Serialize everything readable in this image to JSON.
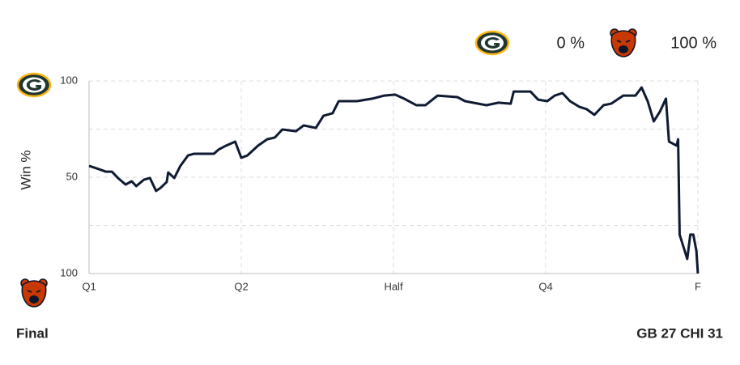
{
  "chart_data": {
    "type": "line",
    "header": {
      "home_pct": "0 %",
      "away_pct": "100 %"
    },
    "ylabel": "Win %",
    "xlim": [
      0,
      4
    ],
    "xticks": [
      {
        "value": 0,
        "label": "Q1"
      },
      {
        "value": 1,
        "label": "Q2"
      },
      {
        "value": 2,
        "label": "Half"
      },
      {
        "value": 3,
        "label": "Q4"
      },
      {
        "value": 4,
        "label": "F"
      }
    ],
    "ylim": [
      0,
      100
    ],
    "yticks": [
      {
        "value": 100,
        "label": "100"
      },
      {
        "value": 50,
        "label": "50"
      },
      {
        "value": 0,
        "label": "100"
      }
    ],
    "ygrid": [
      25,
      50,
      75,
      100
    ],
    "grid": true,
    "series": [
      {
        "color": "#0f1b33",
        "x": [
          0,
          0.05,
          0.11,
          0.15,
          0.19,
          0.24,
          0.28,
          0.31,
          0.36,
          0.4,
          0.44,
          0.47,
          0.51,
          0.52,
          0.56,
          0.6,
          0.65,
          0.69,
          0.82,
          0.85,
          0.9,
          0.96,
          1.0,
          1.04,
          1.11,
          1.17,
          1.22,
          1.27,
          1.36,
          1.41,
          1.49,
          1.54,
          1.6,
          1.64,
          1.76,
          1.86,
          1.94,
          2.01,
          2.07,
          2.15,
          2.21,
          2.29,
          2.42,
          2.47,
          2.61,
          2.69,
          2.77,
          2.79,
          2.9,
          2.95,
          3.01,
          3.06,
          3.11,
          3.16,
          3.22,
          3.27,
          3.32,
          3.38,
          3.43,
          3.51,
          3.59,
          3.63,
          3.67,
          3.71,
          3.75,
          3.79,
          3.81,
          3.86,
          3.87,
          3.88,
          3.93,
          3.95,
          3.97,
          3.99,
          4.0
        ],
        "values": [
          55.9,
          54.6,
          52.9,
          52.9,
          49.6,
          46.2,
          47.9,
          45.4,
          48.7,
          49.6,
          42.9,
          44.5,
          47.5,
          52.5,
          49.6,
          55.9,
          61.3,
          62.2,
          62.2,
          64.3,
          66.4,
          68.5,
          60.1,
          61.3,
          66.4,
          69.7,
          70.6,
          74.8,
          73.9,
          76.9,
          75.6,
          81.9,
          83.2,
          89.5,
          89.5,
          90.8,
          92.4,
          92.9,
          90.8,
          87.4,
          87.4,
          92.4,
          91.6,
          89.5,
          87.4,
          88.7,
          88.2,
          94.5,
          94.5,
          90.3,
          89.5,
          92.4,
          93.7,
          89.5,
          86.6,
          85.3,
          82.4,
          87.4,
          88.2,
          92.4,
          92.4,
          96.6,
          89.5,
          79.0,
          84.0,
          90.8,
          68.5,
          66.4,
          69.7,
          20.2,
          7.6,
          20.2,
          20.2,
          11.8,
          0
        ]
      }
    ],
    "footer": {
      "status": "Final",
      "score": "GB 27 CHI 31"
    }
  }
}
